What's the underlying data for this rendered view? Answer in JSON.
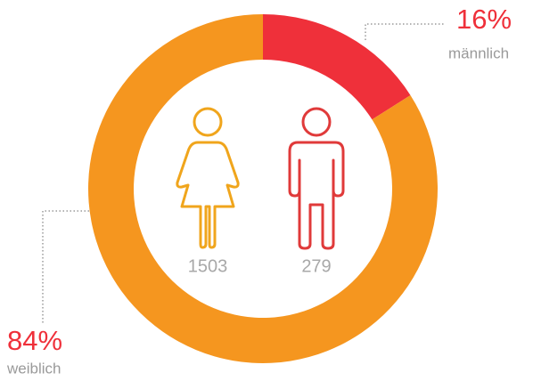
{
  "chart_data": {
    "type": "donut",
    "categories": [
      "männlich",
      "weiblich"
    ],
    "values": [
      16,
      84
    ],
    "value_labels": [
      "16%",
      "84%"
    ],
    "colors": [
      "#ef303a",
      "#f5961f"
    ],
    "counts": [
      279,
      1503
    ]
  }
}
